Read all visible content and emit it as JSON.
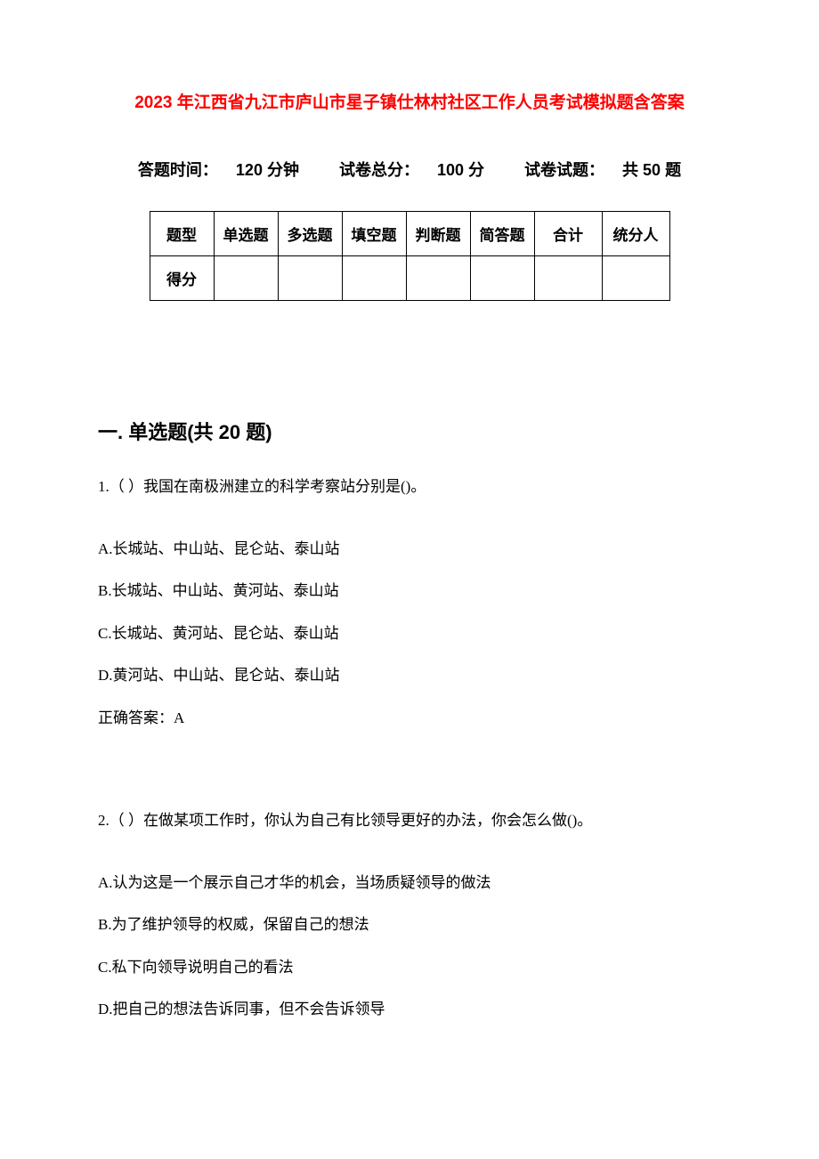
{
  "title": "2023 年江西省九江市庐山市星子镇仕林村社区工作人员考试模拟题含答案",
  "meta": {
    "time_label": "答题时间：",
    "time_value": "120 分钟",
    "total_label": "试卷总分：",
    "total_value": "100 分",
    "count_label": "试卷试题：",
    "count_value": "共 50 题"
  },
  "score_table": {
    "row_label_type": "题型",
    "row_label_score": "得分",
    "columns": [
      "单选题",
      "多选题",
      "填空题",
      "判断题",
      "简答题",
      "合计",
      "统分人"
    ]
  },
  "section_heading": "一. 单选题(共 20 题)",
  "questions": [
    {
      "stem": "1.（ ）我国在南极洲建立的科学考察站分别是()。",
      "options": [
        "A.长城站、中山站、昆仑站、泰山站",
        "B.长城站、中山站、黄河站、泰山站",
        "C.长城站、黄河站、昆仑站、泰山站",
        "D.黄河站、中山站、昆仑站、泰山站"
      ],
      "answer": "正确答案：A"
    },
    {
      "stem": "2.（ ）在做某项工作时，你认为自己有比领导更好的办法，你会怎么做()。",
      "options": [
        "A.认为这是一个展示自己才华的机会，当场质疑领导的做法",
        "B.为了维护领导的权威，保留自己的想法",
        "C.私下向领导说明自己的看法",
        "D.把自己的想法告诉同事，但不会告诉领导"
      ],
      "answer": ""
    }
  ],
  "colors": {
    "title": "#ff0000",
    "text": "#000000",
    "background": "#ffffff",
    "border": "#000000"
  },
  "typography": {
    "title_fontsize": 19,
    "meta_fontsize": 18,
    "table_fontsize": 17,
    "section_fontsize": 22,
    "body_fontsize": 17
  }
}
